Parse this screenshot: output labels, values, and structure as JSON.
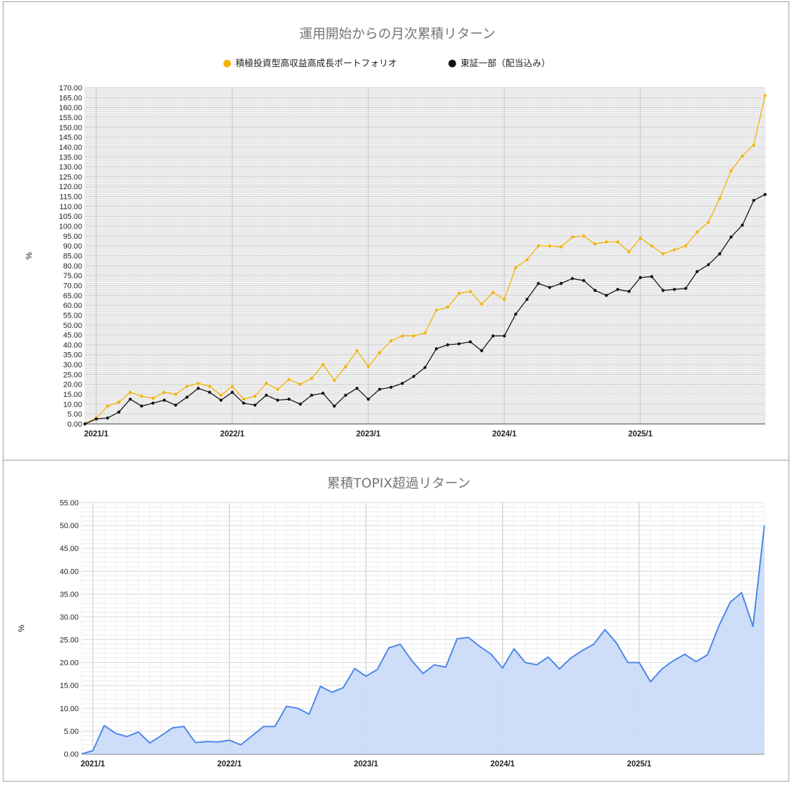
{
  "chart_data": [
    {
      "type": "line",
      "title": "運用開始からの月次累積リターン",
      "ylabel": "%",
      "ylim": [
        0,
        170
      ],
      "ytick_step": 5,
      "y_tick_decimals": 2,
      "x_tick_labels": [
        "2021/1",
        "2022/1",
        "2023/1",
        "2024/1",
        "2025/1"
      ],
      "x_start": "2020/12",
      "legend_position": "top",
      "grid": true,
      "series": [
        {
          "name": "積極投資型高収益高成長ポートフォリオ",
          "color": "#f4b400",
          "values": [
            0,
            3,
            9,
            11,
            16,
            14,
            13,
            16,
            15,
            19,
            20.5,
            19,
            14.5,
            19,
            12.5,
            14,
            20.5,
            17.5,
            22.5,
            20,
            23,
            30,
            22,
            29,
            37,
            29,
            36,
            42,
            44.5,
            44.5,
            46,
            57.5,
            59,
            66,
            67,
            60.5,
            66.5,
            63,
            79,
            83,
            90,
            90,
            89.5,
            94.5,
            95,
            91,
            92,
            92,
            87,
            94,
            90,
            86,
            88,
            90,
            97,
            102,
            114,
            128,
            135.5,
            141,
            166
          ]
        },
        {
          "name": "東証一部（配当込み）",
          "color": "#111111",
          "values": [
            0,
            2.5,
            3,
            6,
            12.5,
            9,
            10.5,
            12,
            9.5,
            13.5,
            18,
            16,
            12,
            16,
            10.5,
            9.5,
            14.5,
            12,
            12.5,
            10,
            14.5,
            15.5,
            9,
            14.5,
            18,
            12.5,
            17.5,
            18.5,
            20.5,
            24,
            28.5,
            38,
            40,
            40.5,
            41.5,
            37,
            44.5,
            44.5,
            55.5,
            63,
            71,
            69,
            71,
            73.5,
            72.5,
            67.5,
            65,
            68,
            67,
            74,
            74.5,
            67.5,
            68,
            68.5,
            77,
            80.5,
            86,
            94.5,
            100.5,
            113,
            116
          ]
        }
      ]
    },
    {
      "type": "area",
      "title": "累積TOPIX超過リターン",
      "ylabel": "%",
      "ylim": [
        0,
        55
      ],
      "ytick_step": 5,
      "y_tick_decimals": 2,
      "x_tick_labels": [
        "2021/1",
        "2022/1",
        "2023/1",
        "2024/1",
        "2025/1"
      ],
      "x_start": "2020/12",
      "grid": true,
      "series": [
        {
          "color": "#4a86e8",
          "fill": "#c9daf8",
          "values": [
            0,
            0.7,
            6.2,
            4.5,
            3.8,
            4.8,
            2.4,
            4,
            5.7,
            6,
            2.5,
            2.7,
            2.6,
            3,
            2,
            4,
            6,
            6,
            10.4,
            10,
            8.7,
            14.8,
            13.5,
            14.5,
            18.7,
            17,
            18.5,
            23.2,
            24,
            20.5,
            17.6,
            19.5,
            19,
            25.2,
            25.5,
            23.5,
            21.8,
            18.8,
            23,
            20,
            19.5,
            21.2,
            18.6,
            21,
            22.6,
            24,
            27.2,
            24.3,
            20,
            20,
            15.8,
            18.6,
            20.4,
            21.8,
            20.2,
            21.7,
            28,
            33.2,
            35.3,
            27.9,
            50
          ]
        }
      ]
    }
  ]
}
